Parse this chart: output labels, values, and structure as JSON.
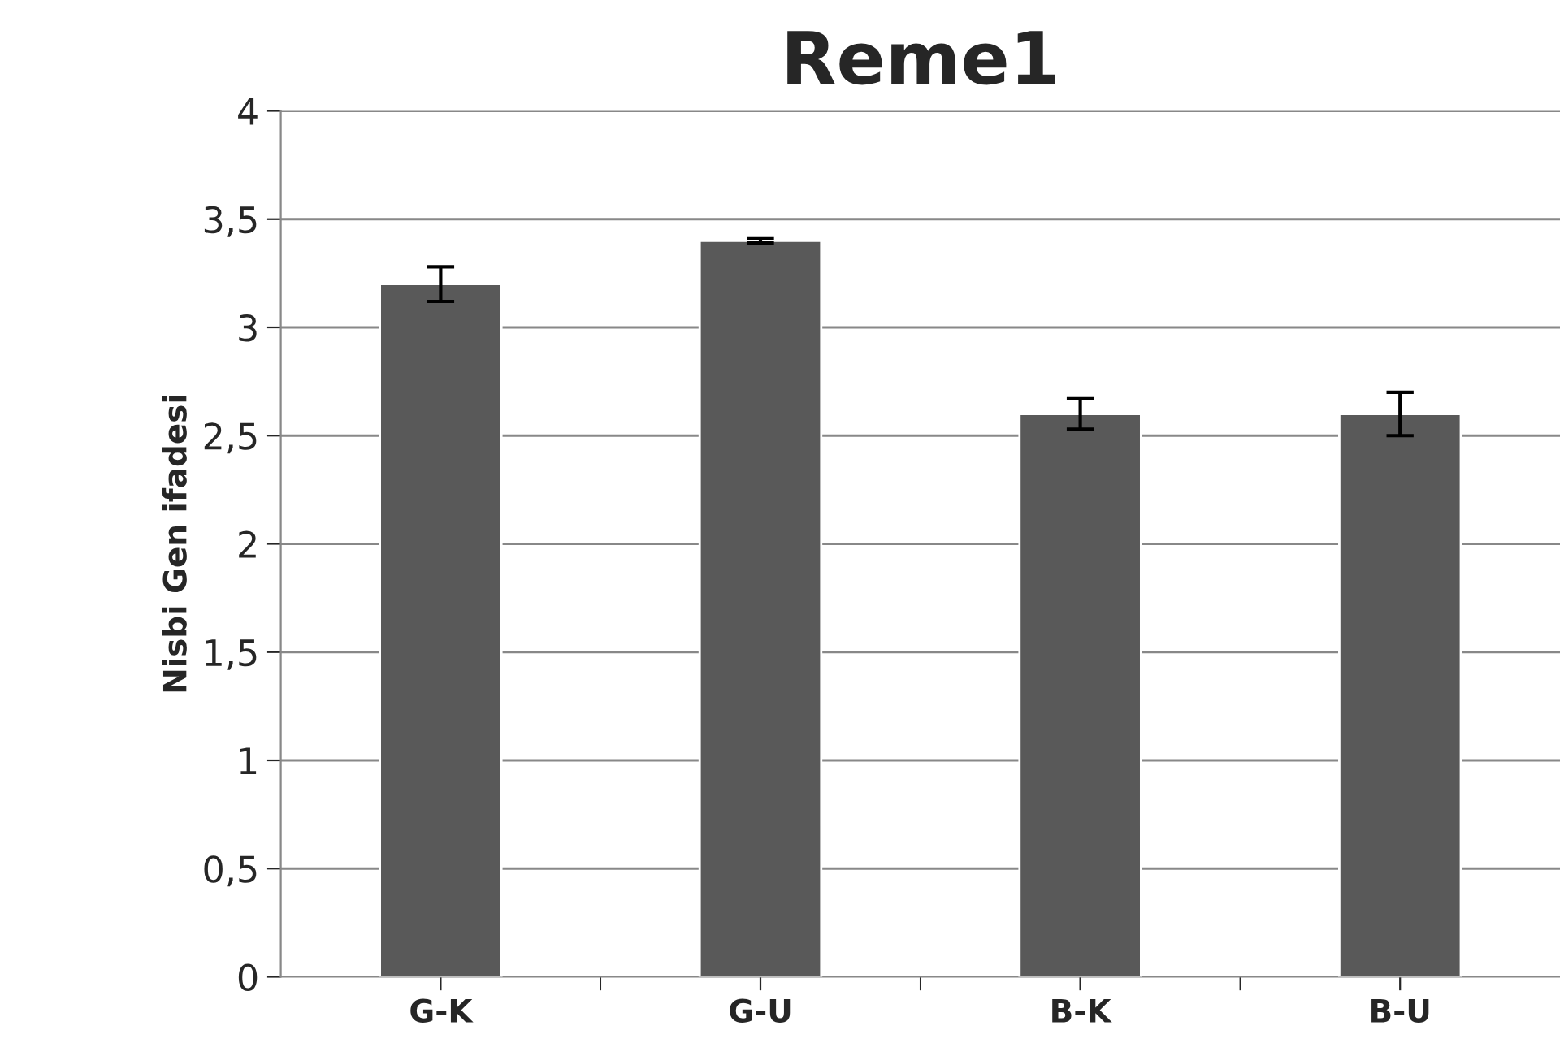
{
  "chart_data": {
    "type": "bar",
    "title": "Reme1",
    "ylabel": "Nisbi Gen ifadesi",
    "categories": [
      "G-K",
      "G-U",
      "B-K",
      "B-U"
    ],
    "values": [
      3.2,
      3.4,
      2.6,
      2.6
    ],
    "errors": [
      0.08,
      0.01,
      0.07,
      0.1
    ],
    "color": "#595959",
    "ylim": [
      0,
      4
    ],
    "yticks": [
      0,
      {
        "value": 0.5,
        "label": "0,5"
      },
      1,
      {
        "value": 1.5,
        "label": "1,5"
      },
      2,
      {
        "value": 2.5,
        "label": "2,5"
      },
      3,
      {
        "value": 3.5,
        "label": "3,5"
      },
      4
    ],
    "grid": "y",
    "legend": false
  }
}
